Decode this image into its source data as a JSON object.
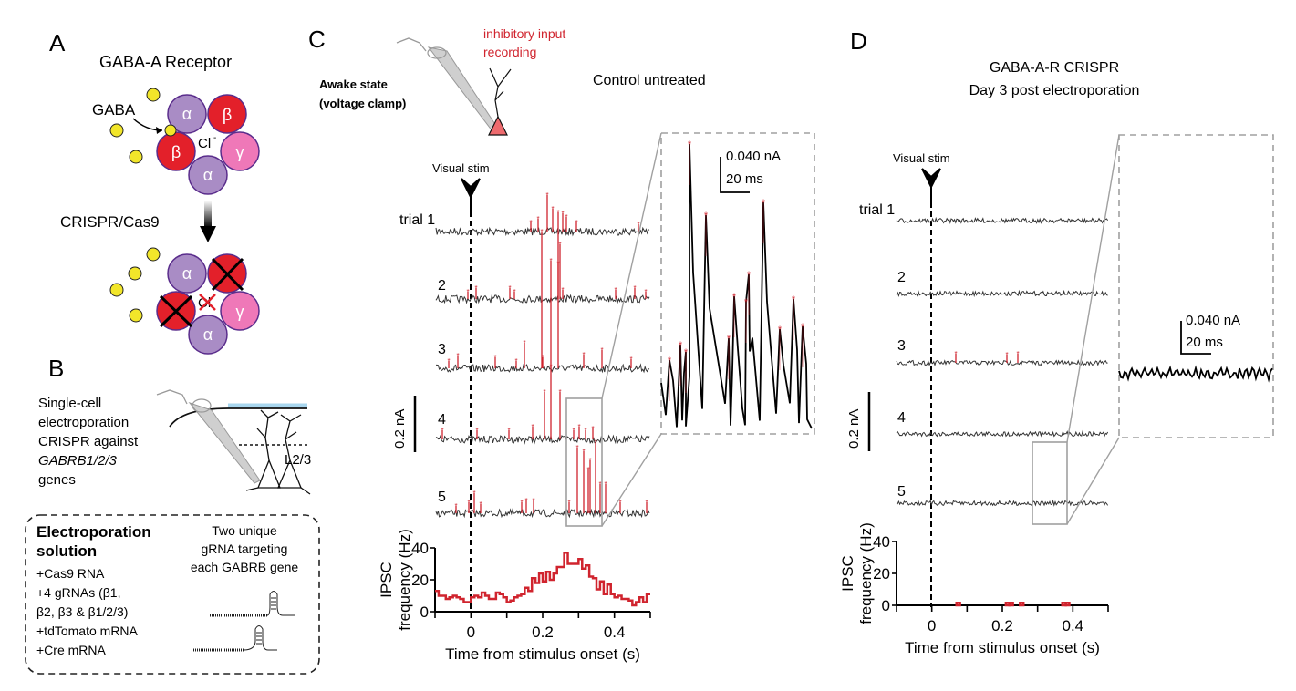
{
  "panels": {
    "A": {
      "letter": "A",
      "title": "GABA-A Receptor",
      "gaba_label": "GABA",
      "chloride_label": "Cl",
      "chloride_superscript": "-",
      "subunits": [
        "α",
        "β",
        "β",
        "γ",
        "α"
      ],
      "arrow_label": "CRISPR/Cas9"
    },
    "B": {
      "letter": "B",
      "description_lines": [
        "Single-cell",
        "electroporation",
        "CRISPR against",
        "GABRB1/2/3",
        "genes"
      ],
      "layer_label": "L2/3",
      "box": {
        "title_lines": [
          "Electroporation",
          "solution"
        ],
        "items": [
          "+Cas9 RNA",
          "+4 gRNAs (β1,",
          "β2, β3 & β1/2/3)",
          "+tdTomato mRNA",
          "+Cre mRNA"
        ],
        "grna_lines": [
          "Two unique",
          "gRNA targeting",
          "each GABRB gene"
        ]
      }
    },
    "C": {
      "letter": "C",
      "state_lines": [
        "Awake state",
        "(voltage clamp)"
      ],
      "recording_lines": [
        "inhibitory input",
        "recording"
      ],
      "condition": "Control untreated",
      "stim_label": "Visual stim",
      "trial_labels": [
        "trial  1",
        "2",
        "3",
        "4",
        "5"
      ],
      "scale_vertical": "0.2 nA",
      "inset_scale_amp": "0.040 nA",
      "inset_scale_time": "20 ms"
    },
    "D": {
      "letter": "D",
      "condition_lines": [
        "GABA-A-R CRISPR",
        "Day 3 post electroporation"
      ],
      "stim_label": "Visual stim",
      "trial_labels": [
        "trial  1",
        "2",
        "3",
        "4",
        "5"
      ],
      "scale_vertical": "0.2 nA",
      "inset_scale_amp": "0.040 nA",
      "inset_scale_time": "20 ms"
    }
  },
  "colors": {
    "beta": "#e3202a",
    "alpha": "#a98cc5",
    "gamma": "#ef78b8",
    "gaba": "#f2e62a",
    "subunit_stroke": "#5a2d8c",
    "ipsc": "#d0242e",
    "trace": "#333333",
    "neuron_soma": "#ee6b6e",
    "pia": "#a8d6ee",
    "zoom_box": "#a0a0a0"
  },
  "chart_data": [
    {
      "panel": "C",
      "type": "line",
      "step": true,
      "title": "",
      "xlabel": "Time from stimulus onset (s)",
      "ylabel": "IPSC frequency (Hz)",
      "xlim": [
        -0.1,
        0.5
      ],
      "ylim": [
        0,
        40
      ],
      "xticks": [
        -0.1,
        0,
        0.1,
        0.2,
        0.3,
        0.4,
        0.5
      ],
      "xtick_labels": [
        "0",
        "0.2",
        "0.4"
      ],
      "xtick_label_values": [
        0,
        0.2,
        0.4
      ],
      "yticks": [
        0,
        20,
        40
      ],
      "ytick_labels": [
        "0",
        "20",
        "40"
      ],
      "bin_width": 0.01,
      "x": [
        -0.1,
        -0.09,
        -0.08,
        -0.07,
        -0.06,
        -0.05,
        -0.04,
        -0.03,
        -0.02,
        -0.01,
        0,
        0.01,
        0.02,
        0.03,
        0.04,
        0.05,
        0.06,
        0.07,
        0.08,
        0.09,
        0.1,
        0.11,
        0.12,
        0.13,
        0.14,
        0.15,
        0.16,
        0.17,
        0.18,
        0.19,
        0.2,
        0.21,
        0.22,
        0.23,
        0.24,
        0.25,
        0.26,
        0.27,
        0.28,
        0.29,
        0.3,
        0.31,
        0.32,
        0.33,
        0.34,
        0.35,
        0.36,
        0.37,
        0.38,
        0.39,
        0.4,
        0.41,
        0.42,
        0.43,
        0.44,
        0.45,
        0.46,
        0.47,
        0.48,
        0.49
      ],
      "values": [
        13,
        10,
        10,
        8,
        9,
        10,
        9,
        8,
        6,
        6,
        9,
        10,
        9,
        12,
        10,
        8,
        8,
        12,
        11,
        9,
        6,
        7,
        9,
        10,
        11,
        15,
        13,
        21,
        18,
        24,
        19,
        25,
        20,
        24,
        28,
        28,
        37,
        30,
        30,
        30,
        33,
        27,
        29,
        22,
        21,
        14,
        19,
        11,
        17,
        11,
        9,
        10,
        8,
        8,
        7,
        4,
        6,
        9,
        6,
        11
      ]
    },
    {
      "panel": "D",
      "type": "line",
      "step": true,
      "title": "",
      "xlabel": "Time from stimulus onset (s)",
      "ylabel": "IPSC frequency (Hz)",
      "xlim": [
        -0.1,
        0.5
      ],
      "ylim": [
        0,
        40
      ],
      "xticks": [
        -0.1,
        0,
        0.1,
        0.2,
        0.3,
        0.4,
        0.5
      ],
      "xtick_labels": [
        "0",
        "0.2",
        "0.4"
      ],
      "xtick_label_values": [
        0,
        0.2,
        0.4
      ],
      "yticks": [
        0,
        20,
        40
      ],
      "ytick_labels": [
        "0",
        "20",
        "40"
      ],
      "bin_width": 0.01,
      "events": [
        {
          "x": 0.07,
          "value": 1
        },
        {
          "x": 0.21,
          "value": 1
        },
        {
          "x": 0.22,
          "value": 1
        },
        {
          "x": 0.25,
          "value": 1
        },
        {
          "x": 0.37,
          "value": 1
        },
        {
          "x": 0.38,
          "value": 1
        }
      ]
    }
  ]
}
